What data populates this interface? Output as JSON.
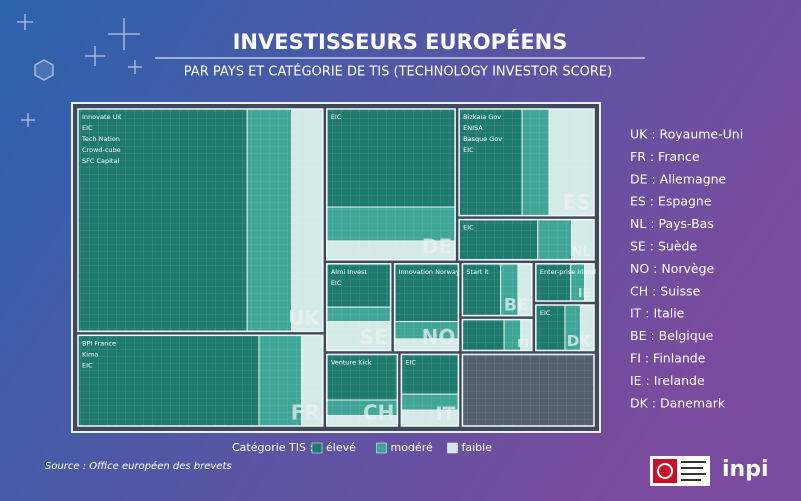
{
  "chart_data": {
    "type": "treemap",
    "title": "INVESTISSEURS EUROPÉENS",
    "subtitle": "PAR PAYS ET CATÉGORIE DE TIS (TECHNOLOGY INVESTOR SCORE)",
    "legend_title": "Catégorie TIS :",
    "groups": [
      {
        "name": "élevé",
        "color": "#1f7a6e"
      },
      {
        "name": "modéré",
        "color": "#3fa596"
      },
      {
        "name": "faible",
        "color": "#d3eae7"
      }
    ],
    "items": [
      {
        "code": "UK",
        "values": [
          380,
          100,
          70
        ],
        "labels": [
          "Innovate UK",
          "EIC",
          "Tech Nation",
          "Crowd-cube",
          "SFC Capital"
        ]
      },
      {
        "code": "FR",
        "values": [
          170,
          40,
          20
        ],
        "labels": [
          "BPI France",
          "Kima",
          "EIC"
        ]
      },
      {
        "code": "DE",
        "values": [
          130,
          45,
          25
        ],
        "labels": [
          "EIC"
        ]
      },
      {
        "code": "ES",
        "values": [
          70,
          30,
          50
        ],
        "labels": [
          "Bizkaia Gov",
          "ENISA",
          "Basque Gov",
          "EIC"
        ]
      },
      {
        "code": "NL",
        "values": [
          35,
          15,
          10
        ],
        "labels": [
          "EIC"
        ]
      },
      {
        "code": "SE",
        "values": [
          30,
          10,
          20
        ],
        "labels": [
          "Almi Invest",
          "EIC"
        ]
      },
      {
        "code": "NO",
        "values": [
          40,
          12,
          8
        ],
        "labels": [
          "Innovation Norway"
        ]
      },
      {
        "code": "CH",
        "values": [
          35,
          12,
          8
        ],
        "labels": [
          "Venture Kick"
        ]
      },
      {
        "code": "IT",
        "values": [
          25,
          10,
          10
        ],
        "labels": [
          "EIC"
        ]
      },
      {
        "code": "BE",
        "values": [
          22,
          10,
          8
        ],
        "labels": [
          "Start it"
        ]
      },
      {
        "code": "FI",
        "values": [
          15,
          6,
          4
        ],
        "labels": []
      },
      {
        "code": "IE",
        "values": [
          15,
          6,
          4
        ],
        "labels": [
          "Enter-prise Irland"
        ]
      },
      {
        "code": "DK",
        "values": [
          15,
          8,
          7
        ],
        "labels": [
          "EIC"
        ]
      },
      {
        "code": null,
        "color": "#55606d",
        "values": [
          100
        ],
        "labels": []
      }
    ],
    "key": [
      "UK : Royaume-Uni",
      "FR : France",
      "DE : Allemagne",
      "ES : Espagne",
      "NL : Pays-Bas",
      "SE : Suède",
      "NO : Norvège",
      "CH : Suisse",
      "IT : Italie",
      "BE : Belgique",
      "FI : Finlande",
      "IE : Irelande",
      "DK : Danemark"
    ],
    "source": "Source :  Office européen des brevets",
    "logo": "inpi"
  }
}
